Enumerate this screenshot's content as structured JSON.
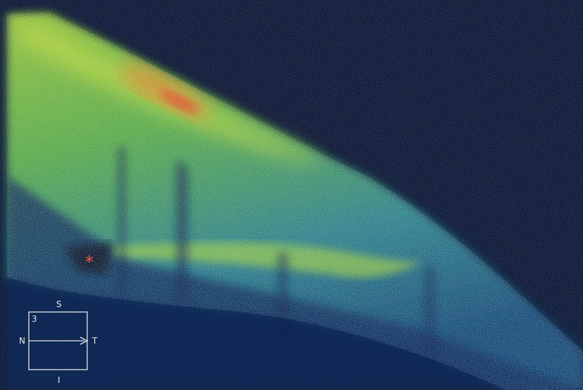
{
  "image": {
    "type": "OCT cross-sectional scan",
    "colormap": [
      "#0b1836",
      "#12306a",
      "#1f6aa0",
      "#3fa58a",
      "#9fcf3a",
      "#d8e23a",
      "#e87b2a",
      "#e0412a"
    ]
  },
  "annotation": {
    "marker": "*",
    "marker_color": "#e8553d"
  },
  "orientation": {
    "superior": "S",
    "inferior": "I",
    "nasal": "N",
    "temporal": "T",
    "scan_number": "3"
  }
}
